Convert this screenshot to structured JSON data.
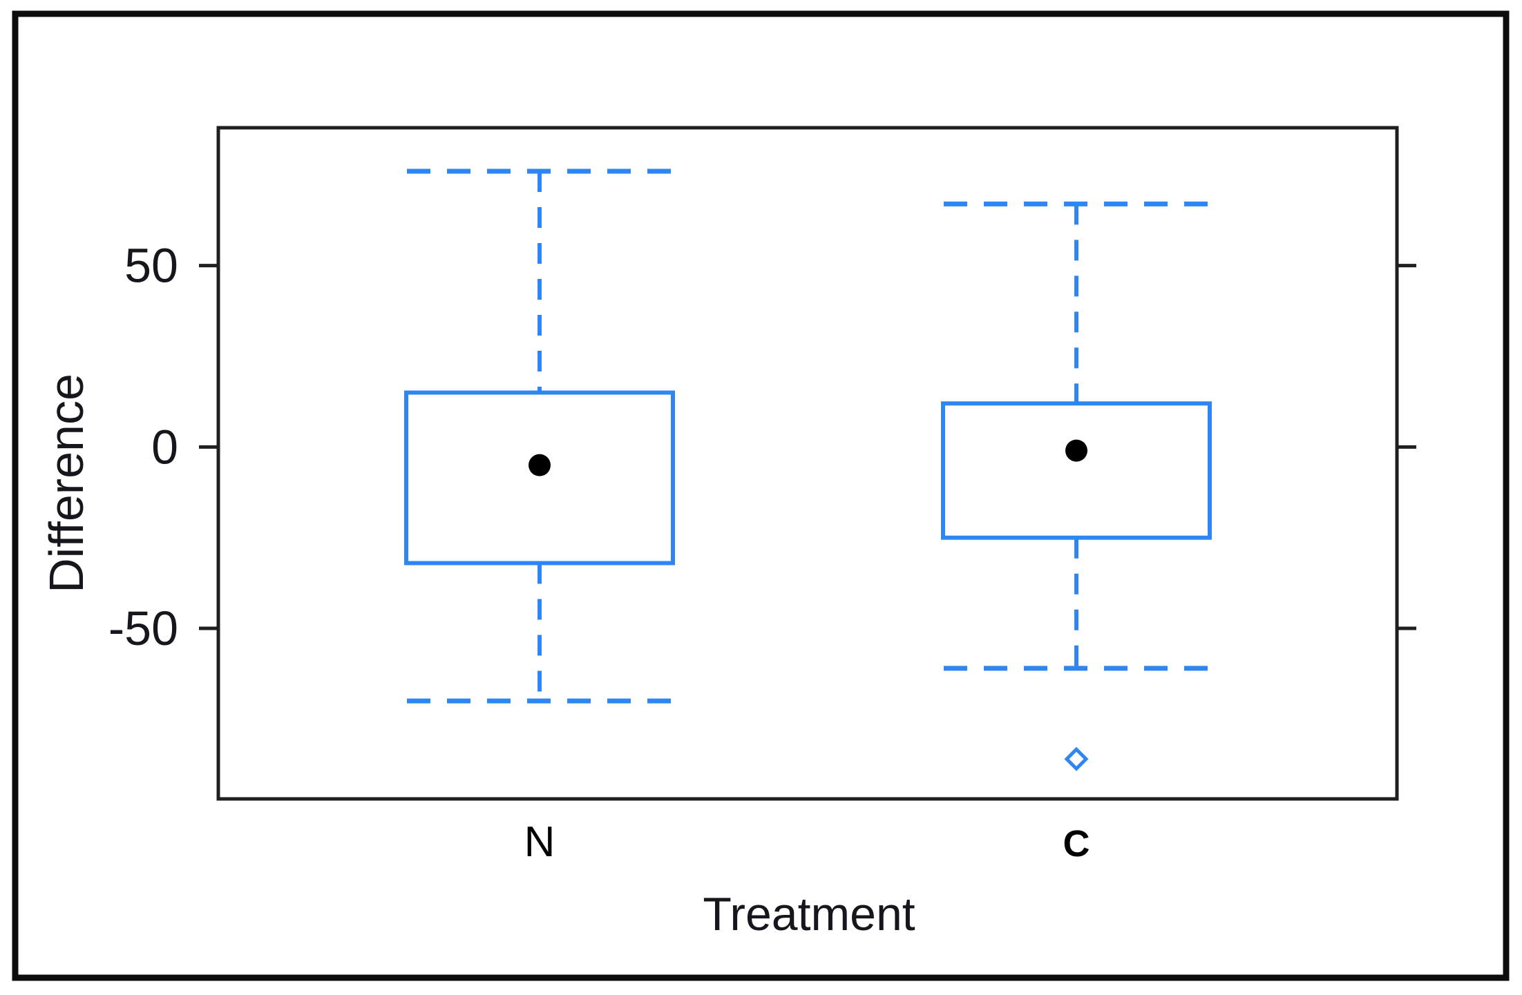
{
  "chart_data": {
    "type": "boxplot",
    "title": "",
    "xlabel": "Treatment",
    "ylabel": "Difference",
    "categories": [
      "N",
      "C"
    ],
    "category_bold": [
      false,
      true
    ],
    "y_ticks": [
      50,
      0,
      -50
    ],
    "y_tick_labels": [
      "50",
      "0",
      "-50"
    ],
    "ylim": [
      -97,
      88
    ],
    "grid": false,
    "legend": "none",
    "series": [
      {
        "name": "N",
        "whisker_high": 76,
        "q3": 15,
        "mean": -5,
        "q1": -32,
        "whisker_low": -70,
        "outliers": []
      },
      {
        "name": "C",
        "whisker_high": 67,
        "q3": 12,
        "mean": -1,
        "q1": -25,
        "whisker_low": -61,
        "outliers": [
          -86
        ]
      }
    ],
    "style": {
      "whisker_style": "dashed",
      "median_line": false,
      "mean_marker": "filled_black_circle",
      "outlier_marker": "open_blue_diamond",
      "box_fill": "none"
    },
    "colors": {
      "box_stroke": "#2e86f2",
      "mean_dot": "#000000",
      "axis": "#1f1f1f",
      "outer_border": "#0d0d0d",
      "text": "#16161d"
    }
  }
}
